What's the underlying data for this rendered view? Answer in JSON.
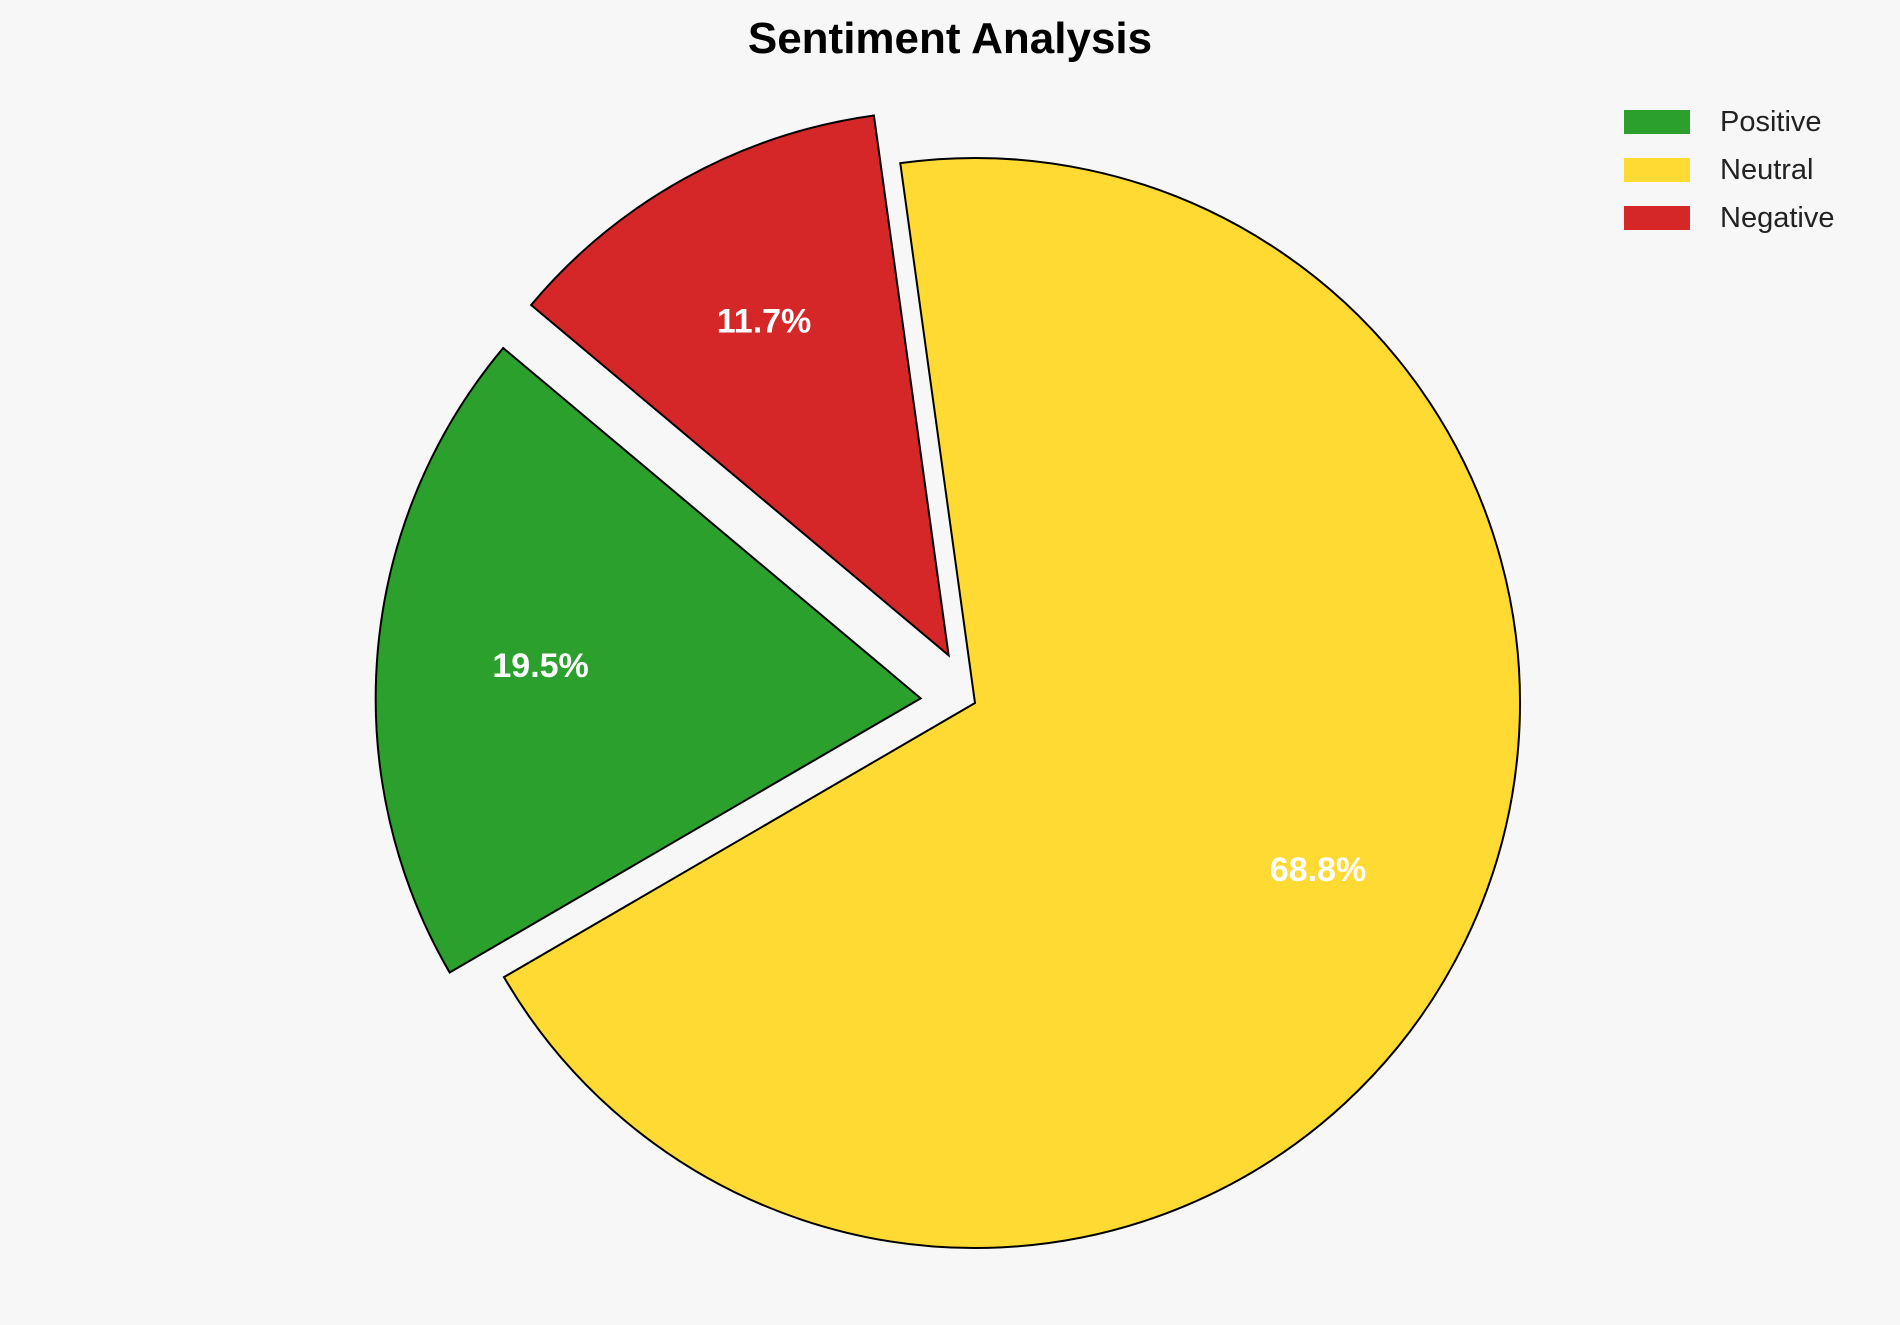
{
  "chart_data": {
    "type": "pie",
    "title": "Sentiment Analysis",
    "categories": [
      "Positive",
      "Neutral",
      "Negative"
    ],
    "values": [
      19.5,
      68.8,
      11.7
    ],
    "labels": [
      "19.5%",
      "68.8%",
      "11.7%"
    ],
    "colors": [
      "#2ca02c",
      "#ffda33",
      "#d62728"
    ],
    "explode": [
      0.1,
      0,
      0.1
    ],
    "start_angle": 140,
    "legend_position": "top-right"
  }
}
